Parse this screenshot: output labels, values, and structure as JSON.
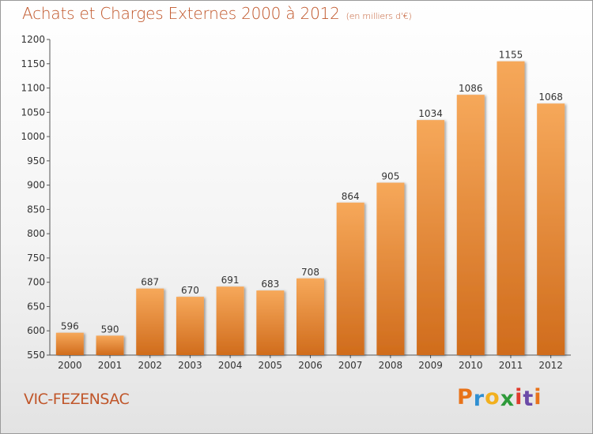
{
  "title": "Achats et Charges Externes 2000 à 2012",
  "unit": "(en milliers d'€)",
  "commune": "VIC-FEZENSAC",
  "brand": {
    "letters": [
      "P",
      "r",
      "o",
      "x",
      "i",
      "t",
      "i"
    ],
    "colors": [
      "#e8731a",
      "#2f8fd1",
      "#f2b01e",
      "#2e9a3a",
      "#e03a2c",
      "#6b4aa8",
      "#e8731a"
    ]
  },
  "colors": {
    "text": "#c0562a",
    "bar_top": "#f6a85a",
    "bar_bottom": "#d06c1c"
  },
  "chart_data": {
    "type": "bar",
    "categories": [
      "2000",
      "2001",
      "2002",
      "2003",
      "2004",
      "2005",
      "2006",
      "2007",
      "2008",
      "2009",
      "2010",
      "2011",
      "2012"
    ],
    "values": [
      596,
      590,
      687,
      670,
      691,
      683,
      708,
      864,
      905,
      1034,
      1086,
      1155,
      1068
    ],
    "ylim": [
      550,
      1200
    ],
    "yticks": [
      550,
      600,
      650,
      700,
      750,
      800,
      850,
      900,
      950,
      1000,
      1050,
      1100,
      1150,
      1200
    ],
    "grid": false,
    "data_labels": true
  }
}
